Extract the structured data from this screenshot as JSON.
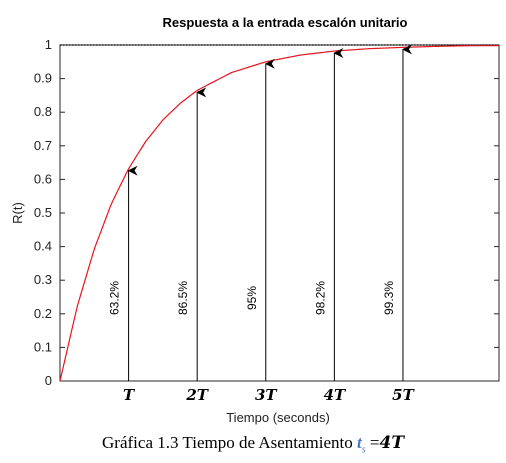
{
  "chart_data": {
    "type": "line",
    "title": "Respuesta a la entrada escalón unitario",
    "xlabel": "Tiempo (seconds)",
    "ylabel": "R(t)",
    "xlim": [
      0,
      6.4
    ],
    "ylim": [
      0,
      1
    ],
    "yticks": [
      "0",
      "0.1",
      "0.2",
      "0.3",
      "0.4",
      "0.5",
      "0.6",
      "0.7",
      "0.8",
      "0.9",
      "1"
    ],
    "grid": false,
    "series": [
      {
        "color": "#e8141c",
        "x": [
          0,
          0.25,
          0.5,
          0.75,
          1,
          1.25,
          1.5,
          1.75,
          2,
          2.5,
          3,
          3.5,
          4,
          4.5,
          5,
          5.5,
          6,
          6.4
        ],
        "y": [
          0,
          0.221,
          0.393,
          0.528,
          0.632,
          0.713,
          0.777,
          0.826,
          0.865,
          0.918,
          0.95,
          0.97,
          0.982,
          0.989,
          0.993,
          0.996,
          0.998,
          0.998
        ]
      }
    ],
    "reference_line": {
      "y": 1,
      "style": "dotted"
    },
    "annotations": [
      {
        "x": 1,
        "y": 0.632,
        "tick": "T",
        "label": "63.2%"
      },
      {
        "x": 2,
        "y": 0.865,
        "tick": "2T",
        "label": "86.5%"
      },
      {
        "x": 3,
        "y": 0.95,
        "tick": "3T",
        "label": "95%"
      },
      {
        "x": 4,
        "y": 0.982,
        "tick": "4T",
        "label": "98.2%"
      },
      {
        "x": 5,
        "y": 0.993,
        "tick": "5T",
        "label": "99.3%"
      }
    ]
  },
  "caption": {
    "text": "Gráfica 1.3 Tiempo de Asentamiento ",
    "ts": "t",
    "ts_sub": "s",
    "equals": " =",
    "value": "4T"
  }
}
